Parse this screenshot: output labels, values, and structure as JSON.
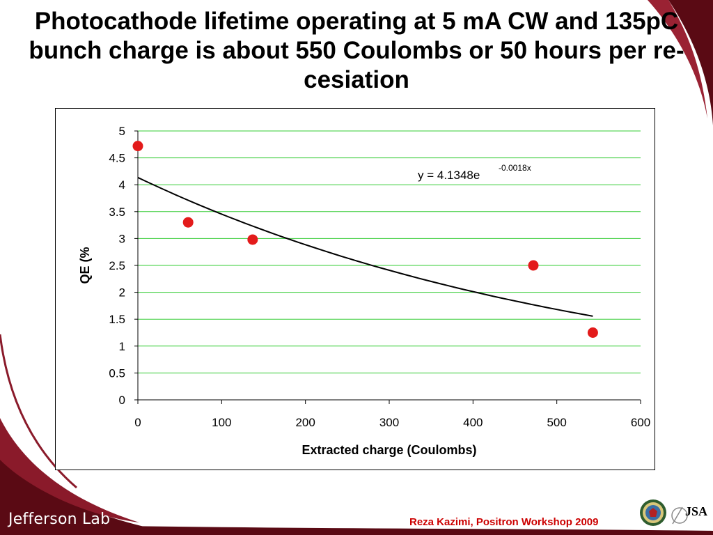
{
  "slide": {
    "title": "Photocathode lifetime operating at 5 mA CW and 135pC bunch charge is about 550 Coulombs or 50 hours per re-cesiation",
    "footer": "Reza Kazimi, Positron Workshop 2009",
    "logo_text": "Jefferson Lab",
    "jsa_logo_text": "JSA",
    "colors": {
      "background_band": "#5a0a14",
      "footer_text": "#cc0000",
      "marker": "#e31b1b",
      "gridline": "#33cc33"
    }
  },
  "chart_data": {
    "type": "scatter",
    "title": "",
    "xlabel": "Extracted charge (Coulombs)",
    "ylabel": "QE (%",
    "xlim": [
      0,
      600
    ],
    "ylim": [
      0,
      5
    ],
    "x_ticks": [
      "0",
      "100",
      "200",
      "300",
      "400",
      "500",
      "600"
    ],
    "y_ticks": [
      "0",
      "0.5",
      "1",
      "1.5",
      "2",
      "2.5",
      "3",
      "3.5",
      "4",
      "4.5",
      "5"
    ],
    "grid": "horizontal",
    "series": [
      {
        "x": [
          0,
          60,
          137,
          472,
          543
        ],
        "y": [
          4.72,
          3.3,
          2.98,
          2.5,
          1.25
        ]
      }
    ],
    "trendline": {
      "type": "exponential",
      "equation_base": "y = 4.1348e",
      "equation_exponent": "-0.0018x",
      "a": 4.1348,
      "b": -0.0018,
      "x_range": [
        0,
        543
      ]
    }
  }
}
